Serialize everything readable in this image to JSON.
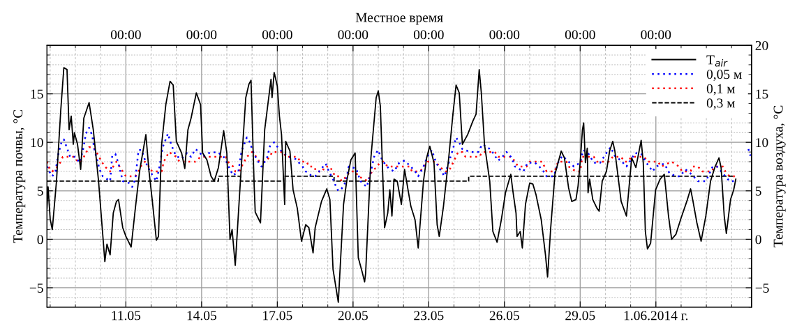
{
  "chart_data": {
    "type": "line",
    "x2label": "Местное время",
    "ylabel": "Температура почвы, °C",
    "y2label": "Температура воздуха, °C",
    "xlim": [
      "2014-05-07T21:00",
      "2014-06-04T19:00"
    ],
    "x2lim": [
      "2014-05-07T21:00",
      "2014-06-04T19:00"
    ],
    "xticks": [
      {
        "value": "2014-05-08",
        "label": null
      },
      {
        "value": "2014-05-09",
        "label": null
      },
      {
        "value": "2014-05-10",
        "label": null
      },
      {
        "value": "2014-05-11",
        "label": "11.05"
      },
      {
        "value": "2014-05-12",
        "label": null
      },
      {
        "value": "2014-05-13",
        "label": null
      },
      {
        "value": "2014-05-14",
        "label": "14.05"
      },
      {
        "value": "2014-05-15",
        "label": null
      },
      {
        "value": "2014-05-16",
        "label": null
      },
      {
        "value": "2014-05-17",
        "label": "17.05"
      },
      {
        "value": "2014-05-18",
        "label": null
      },
      {
        "value": "2014-05-19",
        "label": null
      },
      {
        "value": "2014-05-20",
        "label": "20.05"
      },
      {
        "value": "2014-05-21",
        "label": null
      },
      {
        "value": "2014-05-22",
        "label": null
      },
      {
        "value": "2014-05-23",
        "label": "23.05"
      },
      {
        "value": "2014-05-24",
        "label": null
      },
      {
        "value": "2014-05-25",
        "label": null
      },
      {
        "value": "2014-05-26",
        "label": "26.05"
      },
      {
        "value": "2014-05-27",
        "label": null
      },
      {
        "value": "2014-05-28",
        "label": null
      },
      {
        "value": "2014-05-29",
        "label": "29.05"
      },
      {
        "value": "2014-05-30",
        "label": null
      },
      {
        "value": "2014-05-31",
        "label": null
      },
      {
        "value": "2014-06-01",
        "label": "1.06.2014 г."
      },
      {
        "value": "2014-06-02",
        "label": null
      },
      {
        "value": "2014-06-03",
        "label": null
      },
      {
        "value": "2014-06-04",
        "label": null
      }
    ],
    "x2ticks": [
      {
        "value": "2014-05-08",
        "label": null
      },
      {
        "value": "2014-05-09",
        "label": null
      },
      {
        "value": "2014-05-10",
        "label": null
      },
      {
        "value": "2014-05-11",
        "label": "00:00"
      },
      {
        "value": "2014-05-12",
        "label": null
      },
      {
        "value": "2014-05-13",
        "label": null
      },
      {
        "value": "2014-05-14",
        "label": "00:00"
      },
      {
        "value": "2014-05-15",
        "label": null
      },
      {
        "value": "2014-05-16",
        "label": null
      },
      {
        "value": "2014-05-17",
        "label": "00:00"
      },
      {
        "value": "2014-05-18",
        "label": null
      },
      {
        "value": "2014-05-19",
        "label": null
      },
      {
        "value": "2014-05-20",
        "label": "00:00"
      },
      {
        "value": "2014-05-21",
        "label": null
      },
      {
        "value": "2014-05-22",
        "label": null
      },
      {
        "value": "2014-05-23",
        "label": "00:00"
      },
      {
        "value": "2014-05-24",
        "label": null
      },
      {
        "value": "2014-05-25",
        "label": null
      },
      {
        "value": "2014-05-26",
        "label": "00:00"
      },
      {
        "value": "2014-05-27",
        "label": null
      },
      {
        "value": "2014-05-28",
        "label": null
      },
      {
        "value": "2014-05-29",
        "label": "00:00"
      },
      {
        "value": "2014-05-30",
        "label": null
      },
      {
        "value": "2014-05-31",
        "label": null
      },
      {
        "value": "2014-06-01",
        "label": "00:00"
      },
      {
        "value": "2014-06-02",
        "label": null
      },
      {
        "value": "2014-06-03",
        "label": null
      },
      {
        "value": "2014-06-04",
        "label": null
      }
    ],
    "ylim": [
      -7,
      20
    ],
    "y2lim": [
      -7,
      20
    ],
    "yticks": [
      {
        "value": -7,
        "label": null
      },
      {
        "value": -6,
        "label": null
      },
      {
        "value": -5,
        "label": "−5"
      },
      {
        "value": -4,
        "label": null
      },
      {
        "value": -3,
        "label": null
      },
      {
        "value": -2,
        "label": null
      },
      {
        "value": -1,
        "label": null
      },
      0,
      {
        "value": 1,
        "label": null
      },
      {
        "value": 2,
        "label": null
      },
      {
        "value": 3,
        "label": null
      },
      {
        "value": 4,
        "label": null
      },
      5,
      {
        "value": 6,
        "label": null
      },
      {
        "value": 7,
        "label": null
      },
      {
        "value": 8,
        "label": null
      },
      {
        "value": 9,
        "label": null
      },
      10,
      {
        "value": 11,
        "label": null
      },
      {
        "value": 12,
        "label": null
      },
      {
        "value": 13,
        "label": null
      },
      {
        "value": 14,
        "label": null
      },
      15,
      {
        "value": 16,
        "label": null
      },
      {
        "value": 17,
        "label": null
      },
      {
        "value": 18,
        "label": null
      },
      {
        "value": 19,
        "label": null
      },
      {
        "value": 20,
        "label": null
      }
    ],
    "y2ticks": [
      {
        "value": -7,
        "label": null
      },
      {
        "value": -6,
        "label": null
      },
      {
        "value": -5,
        "label": "−5"
      },
      {
        "value": -4,
        "label": null
      },
      {
        "value": -3,
        "label": null
      },
      {
        "value": -2,
        "label": null
      },
      {
        "value": -1,
        "label": null
      },
      0,
      {
        "value": 1,
        "label": null
      },
      {
        "value": 2,
        "label": null
      },
      {
        "value": 3,
        "label": null
      },
      {
        "value": 4,
        "label": null
      },
      5,
      {
        "value": 6,
        "label": null
      },
      {
        "value": 7,
        "label": null
      },
      {
        "value": 8,
        "label": null
      },
      {
        "value": 9,
        "label": null
      },
      10,
      {
        "value": 11,
        "label": null
      },
      {
        "value": 12,
        "label": null
      },
      {
        "value": 13,
        "label": null
      },
      {
        "value": 14,
        "label": null
      },
      15,
      {
        "value": 16,
        "label": null
      },
      {
        "value": 17,
        "label": null
      },
      {
        "value": 18,
        "label": null
      },
      {
        "value": 19,
        "label": null
      },
      20
    ],
    "grid": true,
    "legend": "top right",
    "series": [
      {
        "name": "T$_{air}$",
        "color": "#000000",
        "line_style": "solid",
        "x": [
          "2014-05-07T21:00",
          "2014-05-07T22:00",
          "2014-05-08T00:00",
          "2014-05-08T02:00",
          "2014-05-08T06:00",
          "2014-05-08T10:00",
          "2014-05-08T13:00",
          "2014-05-08T16:00",
          "2014-05-08T18:00",
          "2014-05-08T20:00",
          "2014-05-08T22:00",
          "2014-05-08T23:00",
          "2014-05-09T02:00",
          "2014-05-09T05:00",
          "2014-05-09T08:00",
          "2014-05-09T13:00",
          "2014-05-09T17:00",
          "2014-05-09T22:00",
          "2014-05-10T04:00",
          "2014-05-10T06:00",
          "2014-05-10T09:00",
          "2014-05-10T12:00",
          "2014-05-10T15:00",
          "2014-05-10T17:00",
          "2014-05-10T21:00",
          "2014-05-11T00:00",
          "2014-05-11T05:00",
          "2014-05-11T09:00",
          "2014-05-11T13:00",
          "2014-05-11T19:00",
          "2014-05-11T22:00",
          "2014-05-12T01:00",
          "2014-05-12T05:00",
          "2014-05-12T07:00",
          "2014-05-12T10:00",
          "2014-05-12T14:00",
          "2014-05-12T18:00",
          "2014-05-12T21:00",
          "2014-05-13T00:00",
          "2014-05-13T05:00",
          "2014-05-13T08:00",
          "2014-05-13T11:00",
          "2014-05-13T14:00",
          "2014-05-13T19:00",
          "2014-05-13T23:00",
          "2014-05-14T01:00",
          "2014-05-14T05:00",
          "2014-05-14T09:00",
          "2014-05-14T12:00",
          "2014-05-14T16:00",
          "2014-05-14T21:00",
          "2014-05-15T00:00",
          "2014-05-15T03:00",
          "2014-05-15T05:00",
          "2014-05-15T08:00",
          "2014-05-15T13:00",
          "2014-05-15T18:00",
          "2014-05-15T21:00",
          "2014-05-15T23:00",
          "2014-05-16T02:00",
          "2014-05-16T03:00",
          "2014-05-16T08:00",
          "2014-05-16T12:00",
          "2014-05-16T18:00",
          "2014-05-16T19:00",
          "2014-05-16T21:00",
          "2014-05-17T00:00",
          "2014-05-17T02:00",
          "2014-05-17T04:00",
          "2014-05-17T07:00",
          "2014-05-17T08:00",
          "2014-05-17T12:00",
          "2014-05-17T15:00",
          "2014-05-17T19:00",
          "2014-05-17T23:00",
          "2014-05-18T03:00",
          "2014-05-18T06:00",
          "2014-05-18T10:00",
          "2014-05-18T12:00",
          "2014-05-18T18:00",
          "2014-05-18T23:00",
          "2014-05-19T02:00",
          "2014-05-19T05:00",
          "2014-05-19T10:00",
          "2014-05-19T15:00",
          "2014-05-19T18:00",
          "2014-05-19T22:00",
          "2014-05-20T02:00",
          "2014-05-20T05:00",
          "2014-05-20T09:00",
          "2014-05-20T11:00",
          "2014-05-20T12:00",
          "2014-05-20T17:00",
          "2014-05-20T22:00",
          "2014-05-21T00:00",
          "2014-05-21T02:00",
          "2014-05-21T06:00",
          "2014-05-21T09:00",
          "2014-05-21T11:00",
          "2014-05-21T13:00",
          "2014-05-21T15:00",
          "2014-05-21T18:00",
          "2014-05-21T22:00",
          "2014-05-22T01:00",
          "2014-05-22T07:00",
          "2014-05-22T11:00",
          "2014-05-22T14:00",
          "2014-05-22T19:00",
          "2014-05-22T22:00",
          "2014-05-23T01:00",
          "2014-05-23T05:00",
          "2014-05-23T08:00",
          "2014-05-23T10:00",
          "2014-05-23T14:00",
          "2014-05-23T19:00",
          "2014-05-23T23:00",
          "2014-05-24T02:00",
          "2014-05-24T05:00",
          "2014-05-24T08:00",
          "2014-05-24T13:00",
          "2014-05-24T18:00",
          "2014-05-24T21:00",
          "2014-05-25T00:00",
          "2014-05-25T02:00",
          "2014-05-25T05:00",
          "2014-05-25T10:00",
          "2014-05-25T13:00",
          "2014-05-25T17:00",
          "2014-05-25T21:00",
          "2014-05-26T01:00",
          "2014-05-26T06:00",
          "2014-05-26T08:00",
          "2014-05-26T11:00",
          "2014-05-26T12:00",
          "2014-05-26T15:00",
          "2014-05-26T17:00",
          "2014-05-26T20:00",
          "2014-05-27T00:00",
          "2014-05-27T03:00",
          "2014-05-27T06:00",
          "2014-05-27T11:00",
          "2014-05-27T15:00",
          "2014-05-27T17:00",
          "2014-05-27T20:00",
          "2014-05-28T00:00",
          "2014-05-28T03:00",
          "2014-05-28T06:00",
          "2014-05-28T09:00",
          "2014-05-28T13:00",
          "2014-05-28T16:00",
          "2014-05-28T20:00",
          "2014-05-28T22:00",
          "2014-05-29T00:00",
          "2014-05-29T02:10",
          "2014-05-29T03:20",
          "2014-05-29T05:00",
          "2014-05-29T06:45",
          "2014-05-29T07:30",
          "2014-05-29T09:00",
          "2014-05-29T12:00",
          "2014-05-29T16:00",
          "2014-05-29T18:00",
          "2014-05-29T21:00",
          "2014-05-30T01:00",
          "2014-05-30T04:00",
          "2014-05-30T07:00",
          "2014-05-30T09:00",
          "2014-05-30T12:00",
          "2014-05-30T15:00",
          "2014-05-30T20:00",
          "2014-05-31T01:00",
          "2014-05-31T05:00",
          "2014-05-31T10:00",
          "2014-05-31T12:00",
          "2014-05-31T14:00",
          "2014-05-31T16:00",
          "2014-05-31T19:00",
          "2014-05-31T23:45",
          "2014-06-01T04:00",
          "2014-06-01T08:00",
          "2014-06-01T10:00",
          "2014-06-01T12:00",
          "2014-06-01T15:00",
          "2014-06-01T19:00",
          "2014-06-02T00:00",
          "2014-06-02T06:00",
          "2014-06-02T09:00",
          "2014-06-02T11:00",
          "2014-06-02T15:00",
          "2014-06-02T19:00",
          "2014-06-02T23:30",
          "2014-06-03T04:00",
          "2014-06-03T08:00",
          "2014-06-03T12:00",
          "2014-06-03T14:00",
          "2014-06-03T17:00",
          "2014-06-03T19:00",
          "2014-06-03T23:00",
          "2014-06-04T02:00",
          "2014-06-04T04:00"
        ],
        "values": [
          3.2,
          5.4,
          2.1,
          1.0,
          6.0,
          13.2,
          17.7,
          17.5,
          11.3,
          12.7,
          9.8,
          11.0,
          9.8,
          7.2,
          12.5,
          14.1,
          11.3,
          6.0,
          -2.3,
          -0.5,
          -1.6,
          2.7,
          3.9,
          4.1,
          1.2,
          0.3,
          -0.8,
          3.2,
          7.0,
          10.8,
          7.0,
          4.1,
          -0.1,
          0.3,
          9.8,
          13.9,
          16.3,
          15.9,
          10.1,
          8.9,
          7.3,
          11.3,
          12.5,
          15.1,
          13.9,
          8.9,
          8.2,
          6.5,
          6.0,
          7.4,
          11.2,
          8.9,
          0.0,
          1.0,
          -2.7,
          6.2,
          14.6,
          16.0,
          16.4,
          5.5,
          2.8,
          1.7,
          11.3,
          16.5,
          14.6,
          17.2,
          15.8,
          12.7,
          10.8,
          3.6,
          10.1,
          9.1,
          5.1,
          3.2,
          -0.2,
          1.5,
          1.2,
          -1.4,
          1.2,
          3.9,
          5.2,
          4.1,
          -3.1,
          -6.5,
          3.6,
          6.0,
          8.2,
          8.9,
          -1.9,
          -3.5,
          -4.4,
          -3.5,
          8.4,
          14.6,
          15.3,
          13.7,
          1.2,
          2.7,
          5.1,
          2.4,
          6.2,
          6.0,
          3.6,
          7.2,
          3.4,
          2.0,
          -0.9,
          6.0,
          8.4,
          9.6,
          7.9,
          1.5,
          0.3,
          3.4,
          8.4,
          12.9,
          15.9,
          15.1,
          9.8,
          10.8,
          12.2,
          12.9,
          17.5,
          15.1,
          9.8,
          6.0,
          0.8,
          -0.3,
          2.0,
          4.8,
          6.7,
          5.0,
          2.7,
          0.3,
          0.8,
          -0.9,
          3.6,
          5.8,
          5.7,
          4.6,
          2.0,
          -1.6,
          -3.9,
          1.2,
          6.7,
          7.9,
          9.1,
          8.4,
          5.3,
          3.9,
          4.1,
          5.5,
          7.9,
          11.3,
          12.0,
          7.9,
          9.4,
          4.8,
          6.2,
          4.1,
          3.2,
          2.9,
          6.0,
          7.0,
          9.1,
          10.1,
          9.1,
          6.5,
          3.9,
          2.4,
          8.4,
          7.4,
          10.2,
          7.9,
          0.8,
          -1.0,
          -0.4,
          5.1,
          6.2,
          6.7,
          4.6,
          2.4,
          0.0,
          0.5,
          2.2,
          4.1,
          5.2,
          4.1,
          1.7,
          -0.2,
          2.4,
          6.0,
          7.4,
          8.4,
          7.4,
          2.4,
          0.6,
          4.1,
          5.1,
          6.2
        ]
      },
      {
        "name": "0,05 м",
        "color": "#0000ff",
        "line_style": "dotted",
        "x": [
          "2014-05-07T21:00",
          "2014-05-07T23:00",
          "2014-05-08T02:00",
          "2014-05-08T05:00",
          "2014-05-08T08:00",
          "2014-05-08T11:00",
          "2014-05-08T13:00",
          "2014-05-08T17:00",
          "2014-05-08T19:00",
          "2014-05-09T00:00",
          "2014-05-09T04:00",
          "2014-05-09T07:00",
          "2014-05-09T10:00",
          "2014-05-09T13:00",
          "2014-05-09T16:00",
          "2014-05-09T18:00",
          "2014-05-09T23:00",
          "2014-05-10T02:00",
          "2014-05-10T09:00",
          "2014-05-10T11:00",
          "2014-05-10T14:00",
          "2014-05-10T17:00",
          "2014-05-10T21:00",
          "2014-05-11T03:00",
          "2014-05-11T06:00",
          "2014-05-11T09:00",
          "2014-05-11T12:00",
          "2014-05-11T15:00",
          "2014-05-11T19:00",
          "2014-05-11T23:00",
          "2014-05-12T02:00",
          "2014-05-12T05:00",
          "2014-05-12T08:00",
          "2014-05-12T11:00",
          "2014-05-12T16:00",
          "2014-05-12T19:00",
          "2014-05-12T23:30",
          "2014-05-13T05:00",
          "2014-05-13T10:00",
          "2014-05-13T14:00",
          "2014-05-13T18:00",
          "2014-05-13T22:00",
          "2014-05-14T01:00",
          "2014-05-14T07:00",
          "2014-05-14T15:00",
          "2014-05-14T21:00",
          "2014-05-15T00:00",
          "2014-05-15T03:00",
          "2014-05-15T06:00",
          "2014-05-15T11:00",
          "2014-05-15T14:00",
          "2014-05-15T19:00",
          "2014-05-15T22:00",
          "2014-05-16T00:00",
          "2014-05-16T04:00",
          "2014-05-16T09:00",
          "2014-05-16T14:00",
          "2014-05-16T17:00",
          "2014-05-16T21:00",
          "2014-05-17T01:00",
          "2014-05-17T04:00",
          "2014-05-17T11:00",
          "2014-05-17T17:00",
          "2014-05-18T00:00",
          "2014-05-18T03:00",
          "2014-05-18T08:00",
          "2014-05-18T12:00",
          "2014-05-18T18:00",
          "2014-05-18T22:00",
          "2014-05-19T01:00",
          "2014-05-19T05:00",
          "2014-05-19T08:00",
          "2014-05-19T10:00",
          "2014-05-19T13:00",
          "2014-05-19T17:00",
          "2014-05-19T20:00",
          "2014-05-20T03:00",
          "2014-05-20T07:00",
          "2014-05-20T13:00",
          "2014-05-20T16:00",
          "2014-05-20T20:00",
          "2014-05-20T23:45",
          "2014-05-21T04:00",
          "2014-05-21T10:00",
          "2014-05-21T15:00",
          "2014-05-21T20:00",
          "2014-05-22T01:00",
          "2014-05-22T06:00",
          "2014-05-22T11:00",
          "2014-05-22T14:00",
          "2014-05-22T19:00",
          "2014-05-22T23:00",
          "2014-05-23T03:00",
          "2014-05-23T07:00",
          "2014-05-23T12:00",
          "2014-05-23T15:00",
          "2014-05-23T19:00",
          "2014-05-23T23:00",
          "2014-05-24T02:00",
          "2014-05-24T05:00",
          "2014-05-24T08:00",
          "2014-05-24T16:00",
          "2014-05-24T23:00",
          "2014-05-25T03:00",
          "2014-05-25T08:00",
          "2014-05-25T12:00",
          "2014-05-25T18:00",
          "2014-05-25T22:00",
          "2014-05-26T02:00",
          "2014-05-26T07:00",
          "2014-05-26T10:00",
          "2014-05-26T18:00",
          "2014-05-26T22:00",
          "2014-05-27T05:00",
          "2014-05-27T12:00",
          "2014-05-27T16:00",
          "2014-05-27T23:00",
          "2014-05-28T03:00",
          "2014-05-28T07:00",
          "2014-05-28T12:00",
          "2014-05-28T18:00",
          "2014-05-29T00:00",
          "2014-05-29T03:00",
          "2014-05-29T08:00",
          "2014-05-29T13:00",
          "2014-05-29T19:00",
          "2014-05-30T01:00",
          "2014-05-30T05:00",
          "2014-05-30T09:00",
          "2014-05-30T15:00",
          "2014-05-30T20:00",
          "2014-05-31T01:00",
          "2014-05-31T04:00",
          "2014-05-31T10:00",
          "2014-05-31T15:00",
          "2014-05-31T21:00",
          "2014-05-31T23:45",
          "2014-06-01T08:00",
          "2014-06-01T13:00",
          "2014-06-01T19:00",
          "2014-06-01T23:00",
          "2014-06-02T04:00",
          "2014-06-02T07:00",
          "2014-06-02T16:00",
          "2014-06-02T23:30",
          "2014-06-03T06:00",
          "2014-06-03T10:00",
          "2014-06-03T14:00",
          "2014-06-03T18:00",
          "2014-06-03T22:00",
          "2014-06-04T03:00",
          "2014-06-04T10:00",
          "2014-06-04T16:00",
          "2014-06-04T18:00"
        ],
        "values": [
          7.5,
          7.0,
          6.5,
          7.0,
          8.9,
          10.1,
          10.3,
          9.1,
          8.5,
          8.5,
          7.9,
          9.1,
          10.9,
          11.5,
          10.7,
          9.3,
          7.2,
          6.5,
          6.0,
          8.6,
          8.8,
          7.8,
          6.0,
          5.8,
          5.4,
          6.2,
          9.2,
          9.2,
          7.9,
          7.0,
          6.5,
          6.0,
          7.5,
          9.5,
          10.9,
          9.8,
          8.6,
          8.3,
          8.9,
          8.5,
          9.3,
          9.0,
          8.5,
          8.9,
          9.0,
          8.5,
          7.9,
          7.2,
          6.6,
          7.0,
          9.1,
          10.5,
          10.0,
          9.3,
          8.3,
          7.5,
          8.3,
          9.6,
          10.0,
          9.4,
          9.1,
          8.5,
          8.3,
          7.5,
          7.0,
          6.6,
          6.5,
          7.3,
          7.8,
          7.0,
          6.2,
          5.4,
          5.0,
          5.2,
          5.9,
          7.5,
          7.3,
          6.0,
          5.4,
          6.5,
          8.5,
          9.2,
          8.1,
          7.3,
          7.0,
          7.9,
          8.1,
          7.6,
          7.0,
          6.5,
          7.5,
          8.6,
          9.2,
          7.9,
          7.0,
          6.5,
          7.9,
          9.3,
          10.5,
          10.0,
          9.3,
          9.0,
          9.0,
          9.8,
          9.5,
          9.1,
          8.1,
          8.5,
          9.0,
          8.4,
          7.5,
          7.0,
          7.9,
          7.9,
          7.2,
          6.5,
          6.5,
          7.9,
          8.6,
          8.1,
          7.5,
          7.9,
          9.2,
          8.8,
          7.9,
          7.9,
          8.9,
          9.5,
          8.6,
          8.1,
          7.5,
          8.3,
          8.9,
          8.8,
          7.9,
          7.0,
          7.5,
          7.8,
          6.8,
          6.5,
          6.5,
          7.2,
          7.0,
          6.0,
          6.0,
          7.5,
          7.5,
          7.0,
          6.5,
          6.0,
          6.0,
          null,
          9.3,
          8.6
        ]
      },
      {
        "name": "0,1 м",
        "color": "#ff0000",
        "line_style": "dotted",
        "x": [
          "2014-05-07T21:00",
          "2014-05-07T22:00",
          "2014-05-08T02:00",
          "2014-05-08T07:00",
          "2014-05-08T10:00",
          "2014-05-08T12:00",
          "2014-05-08T23:30",
          "2014-05-09T02:00",
          "2014-05-09T05:00",
          "2014-05-09T08:00",
          "2014-05-09T13:00",
          "2014-05-09T17:00",
          "2014-05-09T20:00",
          "2014-05-10T01:00",
          "2014-05-10T04:00",
          "2014-05-10T09:00",
          "2014-05-10T12:00",
          "2014-05-10T15:00",
          "2014-05-10T18:00",
          "2014-05-10T21:00",
          "2014-05-11T00:00",
          "2014-05-11T09:00",
          "2014-05-11T12:00",
          "2014-05-11T14:00",
          "2014-05-11T18:00",
          "2014-05-11T22:00",
          "2014-05-12T01:00",
          "2014-05-12T10:00",
          "2014-05-12T12:00",
          "2014-05-12T17:00",
          "2014-05-13T00:00",
          "2014-05-13T03:00",
          "2014-05-13T18:00",
          "2014-05-13T23:00",
          "2014-05-14T23:00",
          "2014-05-15T01:00",
          "2014-05-15T06:00",
          "2014-05-15T08:00",
          "2014-05-15T12:00",
          "2014-05-15T14:00",
          "2014-05-15T19:00",
          "2014-05-16T00:00",
          "2014-05-16T04:00",
          "2014-05-16T07:00",
          "2014-05-16T12:00",
          "2014-05-16T17:00",
          "2014-05-16T19:00",
          "2014-05-17T06:00",
          "2014-05-17T08:00",
          "2014-05-17T19:00",
          "2014-05-17T22:00",
          "2014-05-18T04:00",
          "2014-05-18T06:00",
          "2014-05-18T11:00",
          "2014-05-18T13:00",
          "2014-05-18T19:00",
          "2014-05-18T21:00",
          "2014-05-19T02:00",
          "2014-05-19T07:00",
          "2014-05-19T11:00",
          "2014-05-19T13:00",
          "2014-05-19T18:00",
          "2014-05-19T21:00",
          "2014-05-20T02:00",
          "2014-05-20T05:00",
          "2014-05-20T14:00",
          "2014-05-20T18:00",
          "2014-05-20T23:00",
          "2014-05-21T02:00",
          "2014-05-21T05:00",
          "2014-05-21T09:00",
          "2014-05-22T06:00",
          "2014-05-22T08:00",
          "2014-05-22T16:00",
          "2014-05-22T19:00",
          "2014-05-22T23:00",
          "2014-05-23T07:00",
          "2014-05-23T10:00",
          "2014-05-23T16:00",
          "2014-05-23T19:00",
          "2014-05-23T23:30",
          "2014-05-24T04:00",
          "2014-05-24T08:00",
          "2014-05-24T11:00",
          "2014-05-25T00:00",
          "2014-05-25T03:00",
          "2014-05-25T15:00",
          "2014-05-25T18:00",
          "2014-05-26T07:00",
          "2014-05-26T10:00",
          "2014-05-26T13:00",
          "2014-05-26T21:00",
          "2014-05-27T00:00",
          "2014-05-27T12:00",
          "2014-05-27T16:00",
          "2014-05-27T23:45",
          "2014-05-28T03:00",
          "2014-05-28T11:00",
          "2014-05-28T13:00",
          "2014-05-28T20:00",
          "2014-05-29T00:00",
          "2014-05-29T02:00",
          "2014-05-29T13:00",
          "2014-05-29T16:00",
          "2014-05-30T03:00",
          "2014-05-30T07:00",
          "2014-05-30T15:00",
          "2014-05-30T18:00",
          "2014-05-30T21:00",
          "2014-05-31T01:00",
          "2014-05-31T13:00",
          "2014-05-31T16:00",
          "2014-06-01T02:00",
          "2014-06-01T05:00",
          "2014-06-01T15:00",
          "2014-06-01T22:00",
          "2014-06-02T01:00",
          "2014-06-02T09:00",
          "2014-06-02T11:00",
          "2014-06-02T16:00",
          "2014-06-02T20:00",
          "2014-06-03T05:00",
          "2014-06-03T08:00",
          "2014-06-03T16:00",
          "2014-06-03T18:00",
          "2014-06-03T22:00",
          "2014-06-04T03:00"
        ],
        "values": [
          8.0,
          7.5,
          7.0,
          7.5,
          8.0,
          8.5,
          8.5,
          8.0,
          8.0,
          8.5,
          9.5,
          9.5,
          9.0,
          8.0,
          7.5,
          7.0,
          7.5,
          8.0,
          7.5,
          7.0,
          6.5,
          6.5,
          7.0,
          7.5,
          8.0,
          7.5,
          7.0,
          7.0,
          8.0,
          9.0,
          8.5,
          8.0,
          8.0,
          8.5,
          8.5,
          8.0,
          7.5,
          7.0,
          7.0,
          7.5,
          8.5,
          9.0,
          8.5,
          8.0,
          8.0,
          8.5,
          9.0,
          9.0,
          8.5,
          8.5,
          8.0,
          8.0,
          7.5,
          7.5,
          7.0,
          7.0,
          7.5,
          7.5,
          6.5,
          6.5,
          6.0,
          6.5,
          7.0,
          7.0,
          6.5,
          6.0,
          7.0,
          7.5,
          8.0,
          8.0,
          7.5,
          7.5,
          7.0,
          7.0,
          7.5,
          8.0,
          8.0,
          7.5,
          7.0,
          7.0,
          8.0,
          9.0,
          9.0,
          8.5,
          8.5,
          9.0,
          9.0,
          8.5,
          8.5,
          8.0,
          7.5,
          7.5,
          8.0,
          8.0,
          7.0,
          7.0,
          8.0,
          8.0,
          7.5,
          7.0,
          7.0,
          8.5,
          8.5,
          8.0,
          8.0,
          8.5,
          8.5,
          8.0,
          8.0,
          8.5,
          8.5,
          8.0,
          8.0,
          7.5,
          8.0,
          7.5,
          7.0,
          7.0,
          7.5,
          7.5,
          7.0,
          7.0,
          7.5,
          7.5,
          7.0,
          6.5,
          6.5
        ]
      },
      {
        "name": "0,3 м",
        "color": "#000000",
        "line_style": "dashed",
        "x": [
          "2014-05-07T21:00",
          "2014-05-14T16:00",
          "2014-05-14T16:00",
          "2014-05-15T13:00",
          "2014-05-15T13:00",
          "2014-05-17T06:00",
          "2014-05-17T06:00",
          "2014-05-19T06:00",
          "2014-05-19T06:00",
          "2014-05-24T14:00",
          "2014-05-24T14:00",
          "2014-06-04T03:00"
        ],
        "values": [
          6.0,
          6.0,
          6.5,
          6.5,
          6.0,
          6.0,
          6.5,
          6.5,
          6.0,
          6.0,
          6.5,
          6.5
        ]
      }
    ]
  }
}
